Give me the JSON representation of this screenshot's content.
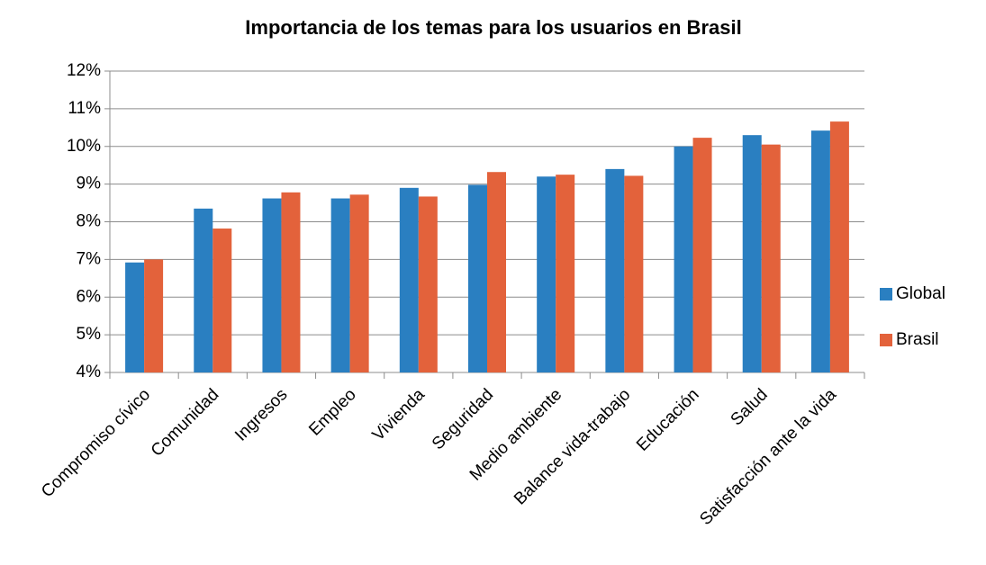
{
  "chart_data": {
    "type": "bar",
    "title": "Importancia de los temas para los usuarios en Brasil",
    "categories": [
      "Compromiso cívico",
      "Comunidad",
      "Ingresos",
      "Empleo",
      "Vivienda",
      "Seguridad",
      "Medio ambiente",
      "Balance vida-trabajo",
      "Educación",
      "Salud",
      "Satisfacción ante la vida"
    ],
    "series": [
      {
        "name": "Global",
        "color": "#2a7fc1",
        "values": [
          6.92,
          8.35,
          8.62,
          8.62,
          8.9,
          8.98,
          9.2,
          9.4,
          10.0,
          10.3,
          10.42
        ]
      },
      {
        "name": "Brasil",
        "color": "#e3623b",
        "values": [
          7.0,
          7.82,
          8.78,
          8.72,
          8.67,
          9.32,
          9.25,
          9.22,
          10.23,
          10.05,
          10.66
        ]
      }
    ],
    "ylim": [
      4,
      12
    ],
    "yticks": [
      {
        "value": 4,
        "label": "4%"
      },
      {
        "value": 5,
        "label": "5%"
      },
      {
        "value": 6,
        "label": "6%"
      },
      {
        "value": 7,
        "label": "7%"
      },
      {
        "value": 8,
        "label": "8%"
      },
      {
        "value": 9,
        "label": "9%"
      },
      {
        "value": 10,
        "label": "10%"
      },
      {
        "value": 11,
        "label": "11%"
      },
      {
        "value": 12,
        "label": "12%"
      }
    ],
    "grid": true,
    "legend": "right"
  }
}
